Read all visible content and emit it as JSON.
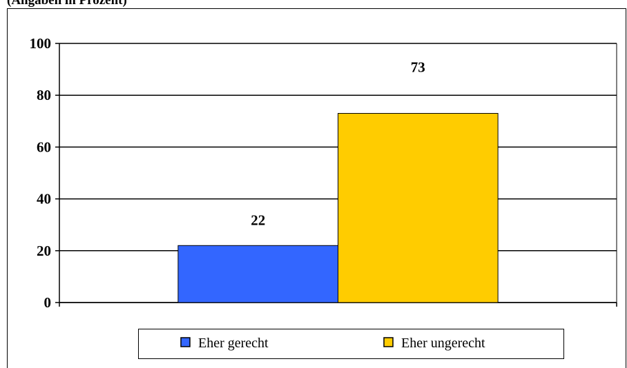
{
  "chart_data": {
    "type": "bar",
    "title": "(Angaben in Prozent)",
    "categories": [
      null
    ],
    "series": [
      {
        "name": "Eher gerecht",
        "color": "#3366ff",
        "values": [
          22
        ]
      },
      {
        "name": "Eher ungerecht",
        "color": "#ffcc00",
        "values": [
          73
        ]
      }
    ],
    "ylim": [
      0,
      100
    ],
    "yticks": [
      0,
      20,
      40,
      60,
      80,
      100
    ],
    "grid": true,
    "legend": "bottom"
  }
}
